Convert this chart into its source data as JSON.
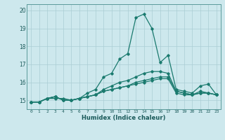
{
  "title": "",
  "xlabel": "Humidex (Indice chaleur)",
  "ylabel": "",
  "xlim": [
    -0.5,
    23.5
  ],
  "ylim": [
    14.5,
    20.35
  ],
  "yticks": [
    15,
    16,
    17,
    18,
    19,
    20
  ],
  "xticks": [
    0,
    1,
    2,
    3,
    4,
    5,
    6,
    7,
    8,
    9,
    10,
    11,
    12,
    13,
    14,
    15,
    16,
    17,
    18,
    19,
    20,
    21,
    22,
    23
  ],
  "background_color": "#cde8ed",
  "line_color": "#1a7a6e",
  "grid_color": "#aacdd4",
  "series": [
    [
      14.9,
      14.9,
      15.1,
      15.1,
      15.1,
      15.0,
      15.1,
      15.4,
      15.6,
      16.3,
      16.5,
      17.3,
      17.6,
      19.6,
      19.8,
      19.0,
      17.1,
      17.5,
      15.6,
      15.5,
      15.4,
      15.8,
      15.9,
      15.3
    ],
    [
      14.9,
      14.9,
      15.1,
      15.2,
      15.0,
      15.0,
      15.1,
      15.2,
      15.3,
      15.6,
      15.8,
      16.0,
      16.1,
      16.3,
      16.5,
      16.6,
      16.6,
      16.5,
      15.5,
      15.4,
      15.3,
      15.4,
      15.4,
      15.3
    ],
    [
      14.9,
      14.9,
      15.1,
      15.2,
      15.0,
      15.0,
      15.1,
      15.2,
      15.3,
      15.5,
      15.6,
      15.7,
      15.8,
      15.9,
      16.0,
      16.1,
      16.2,
      16.2,
      15.4,
      15.3,
      15.3,
      15.4,
      15.4,
      15.3
    ],
    [
      14.9,
      14.9,
      15.1,
      15.2,
      15.0,
      15.0,
      15.1,
      15.2,
      15.3,
      15.5,
      15.6,
      15.7,
      15.8,
      16.0,
      16.1,
      16.2,
      16.3,
      16.3,
      15.5,
      15.4,
      15.3,
      15.5,
      15.4,
      15.3
    ]
  ]
}
